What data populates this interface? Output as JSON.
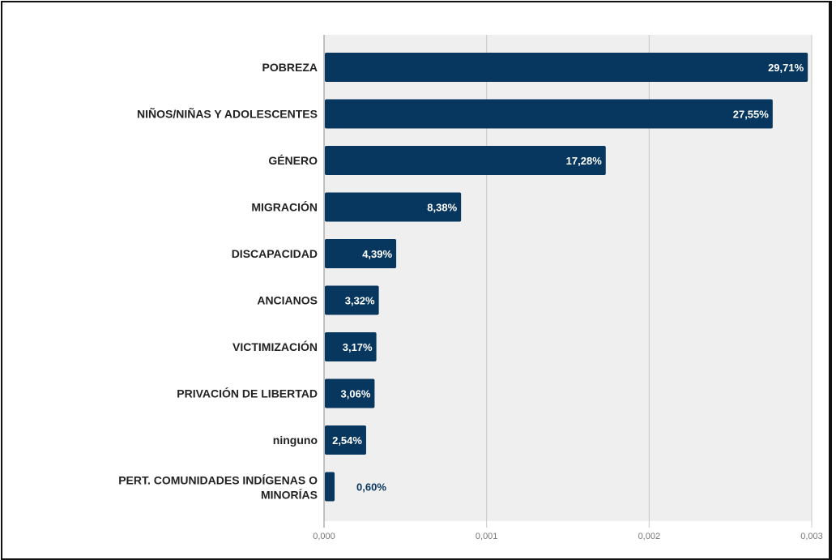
{
  "chart_data": {
    "type": "bar",
    "orientation": "horizontal",
    "categories": [
      "POBREZA",
      "NIÑOS/NIÑAS Y ADOLESCENTES",
      "GÉNERO",
      "MIGRACIÓN",
      "DISCAPACIDAD",
      "ANCIANOS",
      "VICTIMIZACIÓN",
      "PRIVACIÓN DE LIBERTAD",
      "ninguno",
      "PERT. COMUNIDADES INDÍGENAS O MINORÍAS"
    ],
    "values": [
      0.002971,
      0.002755,
      0.001728,
      0.000838,
      0.000439,
      0.000332,
      0.000317,
      0.000306,
      0.000254,
      6e-05
    ],
    "data_labels": [
      "29,71%",
      "27,55%",
      "17,28%",
      "8,38%",
      "4,39%",
      "3,32%",
      "3,17%",
      "3,06%",
      "2,54%",
      "0,60%"
    ],
    "xlim": [
      0,
      0.003
    ],
    "x_ticks": [
      "0,000",
      "0,001",
      "0,002",
      "0,003"
    ],
    "grid": true,
    "title": "",
    "xlabel": "",
    "ylabel": "",
    "colors": {
      "bar": "#07365f",
      "plot_bg": "#efefef",
      "grid": "#c8c8c8",
      "axis": "#888888",
      "label_inside": "#ffffff",
      "label_outside": "#07365f"
    }
  }
}
